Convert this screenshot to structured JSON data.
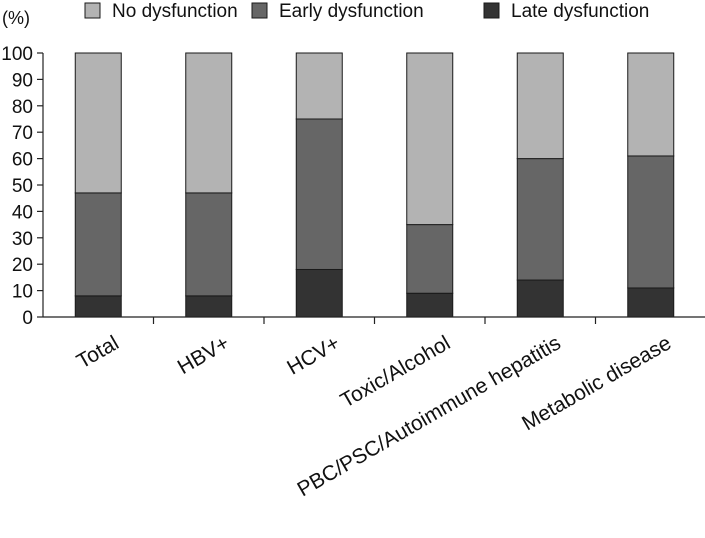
{
  "chart_data": {
    "type": "bar",
    "stacked": true,
    "y_unit_label": "(%)",
    "ylim": [
      0,
      100
    ],
    "yticks": [
      0,
      10,
      20,
      30,
      40,
      50,
      60,
      70,
      80,
      90,
      100
    ],
    "categories": [
      "Total",
      "HBV+",
      "HCV+",
      "Toxic/Alcohol",
      "PBC/PSC/Autoimmune hepatitis",
      "Metabolic disease"
    ],
    "series": [
      {
        "name": "Late dysfunction",
        "values": [
          8,
          8,
          18,
          9,
          14,
          11
        ],
        "color": "#333333"
      },
      {
        "name": "Early dysfunction",
        "values": [
          39,
          39,
          57,
          26,
          46,
          50
        ],
        "color": "#666666"
      },
      {
        "name": "No dysfunction",
        "values": [
          53,
          53,
          25,
          65,
          40,
          39
        ],
        "color": "#b3b3b3"
      }
    ],
    "legend": {
      "placement": "top",
      "order": [
        "No dysfunction",
        "Early dysfunction",
        "Late dysfunction"
      ]
    },
    "grid": false
  }
}
